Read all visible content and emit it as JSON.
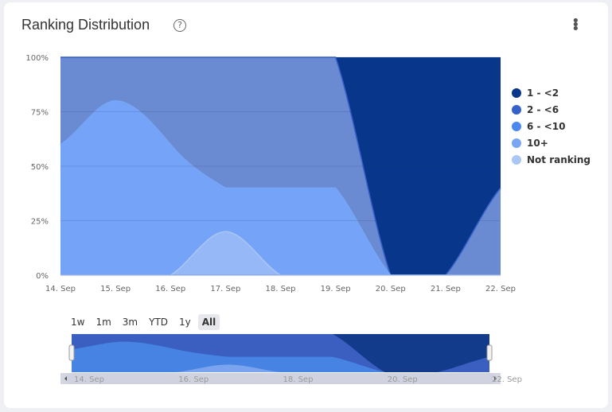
{
  "header": {
    "title": "Ranking Distribution",
    "help_icon": "question-circle-icon",
    "menu_icon": "vertical-ellipsis-icon"
  },
  "range_selector": {
    "buttons": [
      "1w",
      "1m",
      "3m",
      "YTD",
      "1y",
      "All"
    ],
    "selected": "All"
  },
  "navigator": {
    "tick_labels": [
      "14. Sep",
      "16. Sep",
      "18. Sep",
      "20. Sep",
      "22. Sep"
    ]
  },
  "chart_data": {
    "type": "area",
    "stacking": "percent",
    "title": "Ranking Distribution",
    "categories": [
      "14. Sep",
      "15. Sep",
      "16. Sep",
      "17. Sep",
      "18. Sep",
      "19. Sep",
      "20. Sep",
      "21. Sep",
      "22. Sep"
    ],
    "y_ticks": [
      "0%",
      "25%",
      "50%",
      "75%",
      "100%"
    ],
    "ylim": [
      0,
      100
    ],
    "legend_position": "right",
    "series": [
      {
        "name": "1 - <2",
        "color": "#07368a",
        "legend_color": "#07368a",
        "values": [
          0,
          0,
          0,
          0,
          0,
          0,
          100,
          100,
          60
        ]
      },
      {
        "name": "2 - <6",
        "color": "#6a8ad2",
        "legend_color": "#3561c9",
        "values": [
          40,
          20,
          40,
          60,
          60,
          60,
          0,
          0,
          40
        ]
      },
      {
        "name": "6 - <10",
        "color": "#4a87ef",
        "legend_color": "#4a87ef",
        "values": [
          0,
          0,
          0,
          0,
          0,
          0,
          0,
          0,
          0
        ]
      },
      {
        "name": "10+",
        "color": "#74a3f7",
        "legend_color": "#78a6f3",
        "values": [
          60,
          80,
          60,
          20,
          40,
          40,
          0,
          0,
          0
        ]
      },
      {
        "name": "Not ranking",
        "color": "#96b8f7",
        "legend_color": "#a9c6f5",
        "values": [
          0,
          0,
          0,
          20,
          0,
          0,
          0,
          0,
          0
        ]
      }
    ]
  }
}
